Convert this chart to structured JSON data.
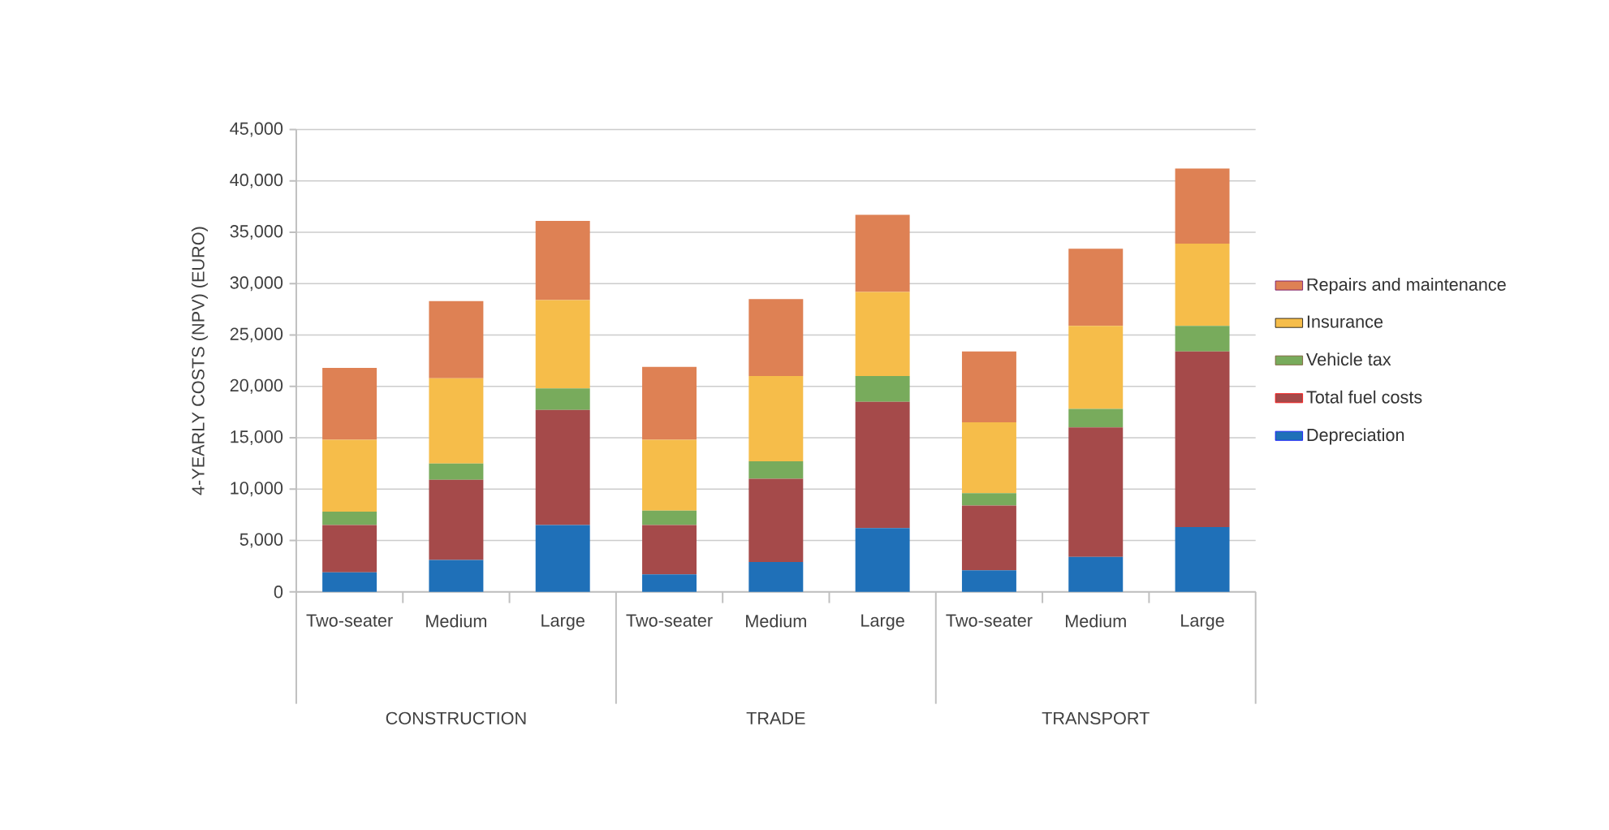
{
  "chart_data": {
    "type": "bar",
    "stacked": true,
    "ylabel": "4-YEARLY COSTS (NPV) (EURO)",
    "categories": [
      "Two-seater",
      "Medium",
      "Large",
      "Two-seater",
      "Medium",
      "Large",
      "Two-seater",
      "Medium",
      "Large"
    ],
    "annotations": [
      "CONSTRUCTION",
      "TRADE",
      "TRANSPORT"
    ],
    "series": [
      {
        "name": "Depreciation",
        "color": "#1f70b8",
        "values": [
          1900,
          3100,
          6500,
          1700,
          2900,
          6200,
          2100,
          3400,
          6300
        ]
      },
      {
        "name": "Total fuel costs",
        "color": "#a54a4a",
        "values": [
          4600,
          7800,
          11200,
          4800,
          8100,
          12300,
          6300,
          12600,
          17100
        ]
      },
      {
        "name": "Vehicle tax",
        "color": "#78ab5c",
        "values": [
          1300,
          1600,
          2100,
          1400,
          1700,
          2500,
          1200,
          1800,
          2500
        ]
      },
      {
        "name": "Insurance",
        "color": "#f6bd4a",
        "values": [
          7000,
          8300,
          8600,
          6900,
          8300,
          8200,
          6900,
          8100,
          8000
        ]
      },
      {
        "name": "Repairs and maintenance",
        "color": "#de8154",
        "values": [
          7000,
          7500,
          7700,
          7100,
          7500,
          7500,
          6900,
          7500,
          7300
        ]
      }
    ],
    "ylim": [
      0,
      45000
    ],
    "yticks": [
      0,
      {
        "value": 5000,
        "label": "5,000"
      },
      {
        "value": 10000,
        "label": "10,000"
      },
      {
        "value": 15000,
        "label": "15,000"
      },
      {
        "value": 20000,
        "label": "20,000"
      },
      {
        "value": 25000,
        "label": "25,000"
      },
      {
        "value": 30000,
        "label": "30,000"
      },
      {
        "value": 35000,
        "label": "35,000"
      },
      {
        "value": 40000,
        "label": "40,000"
      },
      {
        "value": 45000,
        "label": "45,000"
      }
    ],
    "grid": "y",
    "legend": "right"
  }
}
